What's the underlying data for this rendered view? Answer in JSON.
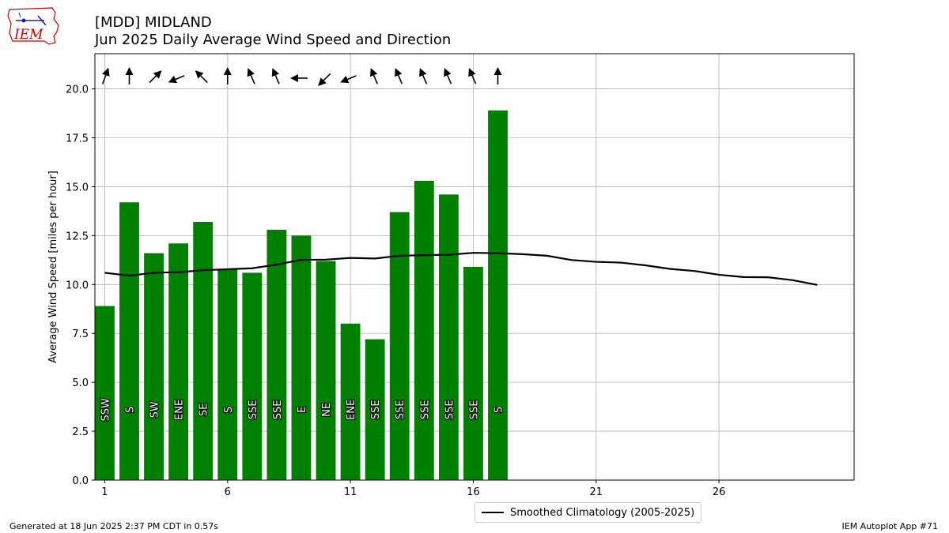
{
  "header": {
    "title_line1": "[MDD] MIDLAND",
    "title_line2": "Jun 2025 Daily Average Wind Speed and Direction",
    "logo_text": "IEM"
  },
  "footer": {
    "generated": "Generated at 18 Jun 2025 2:37 PM CDT in 0.57s",
    "app": "IEM Autoplot App #71"
  },
  "legend": {
    "climatology_label": "Smoothed Climatology (2005-2025)"
  },
  "colors": {
    "bar": "#008000",
    "climatology_line": "#000000",
    "grid": "#b0b0b0",
    "logo_red": "#cc0000",
    "logo_blue": "#1a1acc"
  },
  "chart_data": {
    "type": "bar",
    "ylabel": "Average Wind Speed [miles per hour]",
    "xlim": [
      0.6,
      31.5
    ],
    "ylim": [
      0,
      21.8
    ],
    "x_ticks": [
      1,
      6,
      11,
      16,
      21,
      26
    ],
    "y_ticks": [
      0.0,
      2.5,
      5.0,
      7.5,
      10.0,
      12.5,
      15.0,
      17.5,
      20.0
    ],
    "grid": true,
    "legend_position": "bottom-center",
    "series": [
      {
        "name": "Daily Average Wind Speed",
        "days": [
          1,
          2,
          3,
          4,
          5,
          6,
          7,
          8,
          9,
          10,
          11,
          12,
          13,
          14,
          15,
          16,
          17
        ],
        "values": [
          8.9,
          14.2,
          11.6,
          12.1,
          13.2,
          10.8,
          10.6,
          12.8,
          12.5,
          11.2,
          8.0,
          7.2,
          13.7,
          15.3,
          14.6,
          10.9,
          18.9
        ],
        "directions": [
          "SSW",
          "S",
          "SW",
          "ENE",
          "SE",
          "S",
          "SSE",
          "SSE",
          "E",
          "NE",
          "ENE",
          "SSE",
          "SSE",
          "SSE",
          "SSE",
          "SSE",
          "S"
        ],
        "direction_degrees": [
          200,
          180,
          225,
          67,
          135,
          180,
          157,
          157,
          90,
          45,
          67,
          157,
          157,
          157,
          157,
          157,
          180
        ]
      },
      {
        "name": "Smoothed Climatology (2005-2025)",
        "days": [
          1,
          2,
          3,
          4,
          5,
          6,
          7,
          8,
          9,
          10,
          11,
          12,
          13,
          14,
          15,
          16,
          17,
          18,
          19,
          20,
          21,
          22,
          23,
          24,
          25,
          26,
          27,
          28,
          29,
          30
        ],
        "values": [
          10.6,
          10.45,
          10.6,
          10.63,
          10.73,
          10.78,
          10.83,
          11.02,
          11.26,
          11.27,
          11.36,
          11.33,
          11.47,
          11.5,
          11.52,
          11.62,
          11.6,
          11.55,
          11.47,
          11.25,
          11.16,
          11.12,
          10.98,
          10.8,
          10.69,
          10.5,
          10.38,
          10.37,
          10.22,
          9.98
        ]
      }
    ]
  }
}
